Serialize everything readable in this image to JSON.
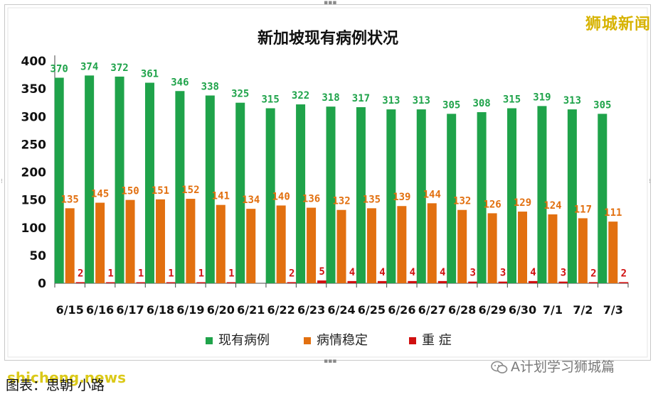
{
  "watermark": {
    "brand": "狮城新闻",
    "wechat": "A计划学习狮城篇",
    "site": "shicheng.news"
  },
  "credit": "图表：思朝 小路",
  "chart_data": {
    "type": "bar",
    "title": "新加坡现有病例状况",
    "categories": [
      "6/15",
      "6/16",
      "6/17",
      "6/18",
      "6/19",
      "6/20",
      "6/21",
      "6/22",
      "6/23",
      "6/24",
      "6/25",
      "6/26",
      "6/27",
      "6/28",
      "6/29",
      "6/30",
      "7/1",
      "7/2",
      "7/3"
    ],
    "series": [
      {
        "name": "现有病例",
        "color": "#1fa34a",
        "values": [
          370,
          374,
          372,
          361,
          346,
          338,
          325,
          315,
          322,
          318,
          317,
          313,
          313,
          305,
          308,
          315,
          319,
          313,
          305
        ]
      },
      {
        "name": "病情稳定",
        "color": "#e27010",
        "values": [
          135,
          145,
          150,
          151,
          152,
          141,
          134,
          140,
          136,
          132,
          135,
          139,
          144,
          132,
          126,
          129,
          124,
          117,
          111
        ]
      },
      {
        "name": "重 症",
        "color": "#d01010",
        "values": [
          2,
          1,
          1,
          1,
          1,
          1,
          null,
          2,
          5,
          4,
          4,
          4,
          4,
          3,
          3,
          4,
          3,
          2,
          2
        ]
      }
    ],
    "ylim": [
      0,
      400
    ],
    "yticks": [
      0,
      50,
      100,
      150,
      200,
      250,
      300,
      350,
      400
    ],
    "grid": false,
    "legend": "bottom"
  }
}
